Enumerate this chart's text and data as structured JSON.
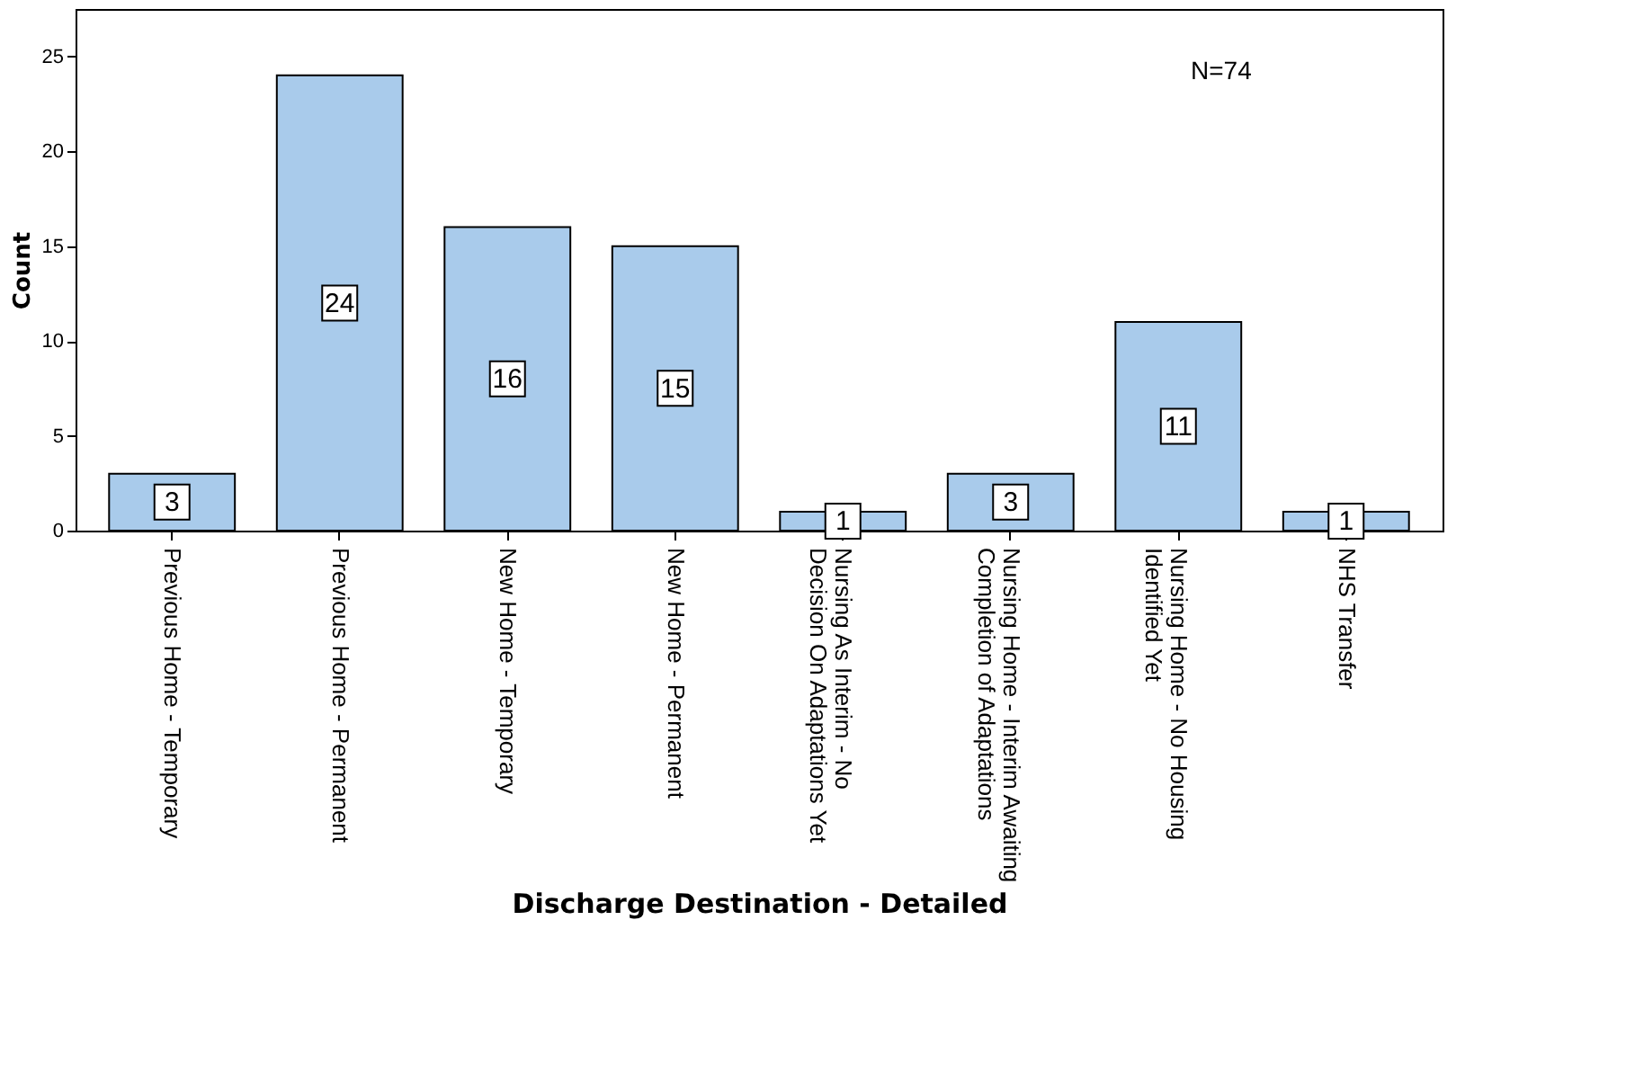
{
  "chart_data": {
    "type": "bar",
    "categories": [
      "Previous Home - Temporary",
      "Previous Home - Permanent",
      "New Home - Temporary",
      "New Home - Permanent",
      "Nursing As Interim - No\nDecision On Adaptations Yet",
      "Nursing Home - Interim Awaiting\nCompletion of Adaptations",
      "Nursing Home - No Housing\nIdentified Yet",
      "NHS Transfer"
    ],
    "values": [
      3,
      24,
      16,
      15,
      1,
      3,
      11,
      1
    ],
    "color": "#a9cbeb",
    "xlabel": "Discharge Destination - Detailed",
    "ylabel": "Count",
    "ylim": [
      0,
      27.5
    ],
    "yticks": [
      0,
      5,
      10,
      15,
      20,
      25
    ],
    "data_labels": true,
    "grid": false,
    "annotations": [
      "N=74"
    ]
  }
}
